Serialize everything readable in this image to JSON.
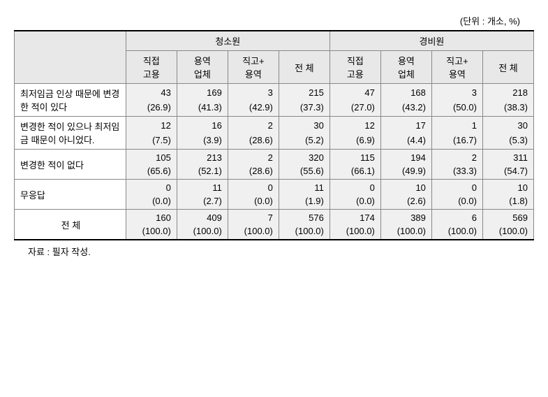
{
  "unit_label": "(단위 : 개소, %)",
  "groups": {
    "left_group_label": "청소원",
    "right_group_label": "경비원"
  },
  "subheaders": {
    "sh1": "직접\n고용",
    "sh2": "용역\n업체",
    "sh3": "직고+\n용역",
    "sh4": "전 체",
    "sh5": "직접\n고용",
    "sh6": "용역\n업체",
    "sh7": "직고+\n용역",
    "sh8": "전 체"
  },
  "rows": [
    {
      "label": "최저임금 인상 때문에 변경한 적이 있다",
      "label_align": "left",
      "vals": [
        "43",
        "169",
        "3",
        "215",
        "47",
        "168",
        "3",
        "218"
      ],
      "pcts": [
        "(26.9)",
        "(41.3)",
        "(42.9)",
        "(37.3)",
        "(27.0)",
        "(43.2)",
        "(50.0)",
        "(38.3)"
      ]
    },
    {
      "label": "변경한 적이 있으나 최저임금 때문이 아니었다.",
      "label_align": "left",
      "vals": [
        "12",
        "16",
        "2",
        "30",
        "12",
        "17",
        "1",
        "30"
      ],
      "pcts": [
        "(7.5)",
        "(3.9)",
        "(28.6)",
        "(5.2)",
        "(6.9)",
        "(4.4)",
        "(16.7)",
        "(5.3)"
      ]
    },
    {
      "label": "변경한 적이 없다",
      "label_align": "left",
      "vals": [
        "105",
        "213",
        "2",
        "320",
        "115",
        "194",
        "2",
        "311"
      ],
      "pcts": [
        "(65.6)",
        "(52.1)",
        "(28.6)",
        "(55.6)",
        "(66.1)",
        "(49.9)",
        "(33.3)",
        "(54.7)"
      ]
    },
    {
      "label": "무응답",
      "label_align": "left",
      "vals": [
        "0",
        "11",
        "0",
        "11",
        "0",
        "10",
        "0",
        "10"
      ],
      "pcts": [
        "(0.0)",
        "(2.7)",
        "(0.0)",
        "(1.9)",
        "(0.0)",
        "(2.6)",
        "(0.0)",
        "(1.8)"
      ]
    },
    {
      "label": "전 체",
      "label_align": "center",
      "vals": [
        "160",
        "409",
        "7",
        "576",
        "174",
        "389",
        "6",
        "569"
      ],
      "pcts": [
        "(100.0)",
        "(100.0)",
        "(100.0)",
        "(100.0)",
        "(100.0)",
        "(100.0)",
        "(100.0)",
        "(100.0)"
      ]
    }
  ],
  "source_note": "자료 : 필자 작성."
}
